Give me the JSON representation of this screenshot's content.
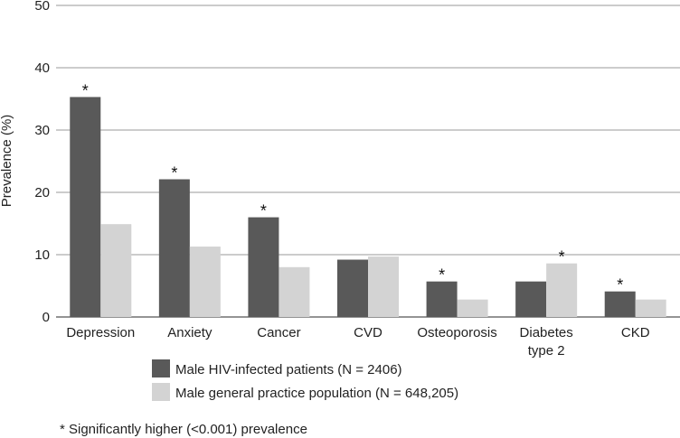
{
  "chart_data": {
    "type": "bar",
    "title": "",
    "xlabel": "",
    "ylabel": "Prevalence (%)",
    "ylim": [
      0,
      50
    ],
    "yticks": [
      0,
      10,
      20,
      30,
      40,
      50
    ],
    "grid": true,
    "categories": [
      [
        "Depression"
      ],
      [
        "Anxiety"
      ],
      [
        "Cancer"
      ],
      [
        "CVD"
      ],
      [
        "Osteoporosis"
      ],
      [
        "Diabetes",
        "type 2"
      ],
      [
        "CKD"
      ]
    ],
    "series": [
      {
        "name": "Male HIV-infected patients (N = 2406)",
        "color": "#595959",
        "values": [
          35.3,
          22.1,
          16.0,
          9.2,
          5.7,
          5.7,
          4.1
        ],
        "significant": [
          true,
          true,
          true,
          false,
          true,
          false,
          true
        ]
      },
      {
        "name": "Male general practice population (N = 648,205)",
        "color": "#d3d3d3",
        "values": [
          14.9,
          11.3,
          8.0,
          9.7,
          2.8,
          8.6,
          2.8
        ],
        "significant": [
          false,
          false,
          false,
          false,
          false,
          true,
          false
        ]
      }
    ],
    "significance_marker": "*",
    "legend_position": "bottom",
    "footnote": "* Significantly higher (<0.001) prevalence"
  }
}
